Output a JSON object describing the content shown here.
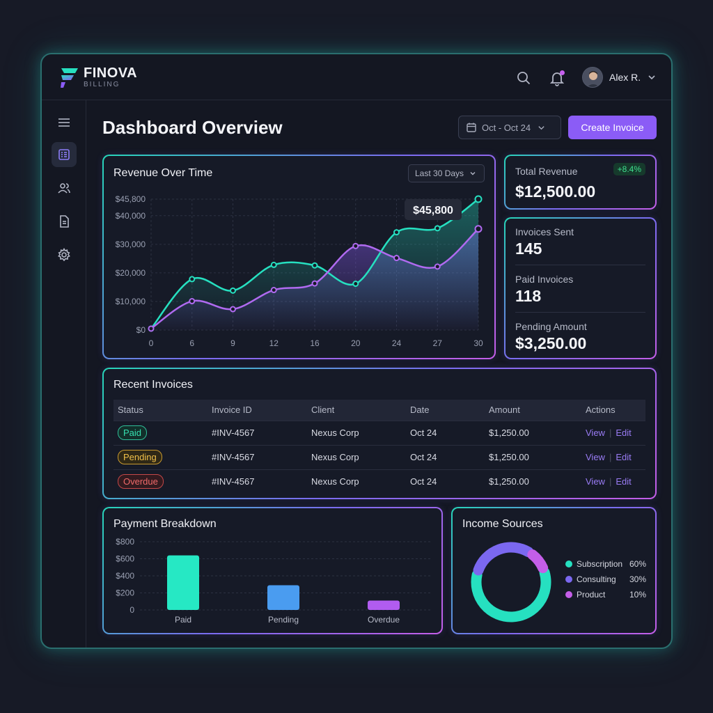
{
  "brand": {
    "name": "FINOVA",
    "sub": "BILLING",
    "colors": {
      "teal": "#26e0c0",
      "violet": "#8b5cf6",
      "magenta": "#c45ee8"
    }
  },
  "header": {
    "user_name": "Alex R.",
    "icons": [
      "search-icon",
      "bell-icon"
    ]
  },
  "sidebar": {
    "items": [
      "menu-icon",
      "dashboard-icon",
      "users-icon",
      "document-icon",
      "settings-icon"
    ],
    "active": "dashboard-icon"
  },
  "page": {
    "title": "Dashboard Overview",
    "date_range": "Oct - Oct 24",
    "create_label": "Create Invoice"
  },
  "revenue": {
    "title": "Revenue Over Time",
    "range_label": "Last 30 Days",
    "tooltip": "$45,800"
  },
  "kpis": {
    "total_revenue_label": "Total Revenue",
    "total_revenue_value": "$12,500.00",
    "total_revenue_change": "+8.4%",
    "invoices_sent_label": "Invoices Sent",
    "invoices_sent_value": "145",
    "paid_invoices_label": "Paid Invoices",
    "paid_invoices_value": "118",
    "pending_amount_label": "Pending Amount",
    "pending_amount_value": "$3,250.00"
  },
  "invoices": {
    "title": "Recent Invoices",
    "columns": [
      "Status",
      "Invoice ID",
      "Client",
      "Date",
      "Amount",
      "Actions"
    ],
    "rows": [
      {
        "status": "Paid",
        "id": "#INV-4567",
        "client": "Nexus Corp",
        "date": "Oct 24",
        "amount": "$1,250.00"
      },
      {
        "status": "Pending",
        "id": "#INV-4567",
        "client": "Nexus Corp",
        "date": "Oct 24",
        "amount": "$1,250.00"
      },
      {
        "status": "Overdue",
        "id": "#INV-4567",
        "client": "Nexus Corp",
        "date": "Oct 24",
        "amount": "$1,250.00"
      }
    ],
    "view_label": "View",
    "edit_label": "Edit"
  },
  "payment": {
    "title": "Payment Breakdown"
  },
  "income": {
    "title": "Income Sources",
    "items": [
      {
        "name": "Subscription",
        "pct": "60%",
        "color": "#26e0c0"
      },
      {
        "name": "Consulting",
        "pct": "30%",
        "color": "#7b68f0"
      },
      {
        "name": "Product",
        "pct": "10%",
        "color": "#c45ee8"
      }
    ]
  },
  "chart_data": [
    {
      "type": "line",
      "x": [
        0,
        6,
        9,
        12,
        16,
        20,
        24,
        27,
        30
      ],
      "xticks": [
        "0",
        "6",
        "9",
        "12",
        "16",
        "20",
        "24",
        "27",
        "30"
      ],
      "yticks": [
        "$0",
        "$10,000",
        "$20,000",
        "$30,000",
        "$40,000",
        "$45,800"
      ],
      "ylim": [
        0,
        45800
      ],
      "grid": true,
      "series": [
        {
          "values": [
            500,
            17800,
            13800,
            22800,
            22600,
            16200,
            34200,
            35600,
            45800
          ],
          "color": "#26e0c0"
        },
        {
          "values": [
            500,
            10100,
            7300,
            14000,
            16300,
            29400,
            25200,
            22200,
            35400
          ],
          "color": "#b06af0"
        }
      ]
    },
    {
      "type": "bar",
      "categories": [
        "Paid",
        "Pending",
        "Overdue"
      ],
      "values": [
        640,
        290,
        110
      ],
      "colors": [
        "#26e8c4",
        "#4a9cf0",
        "#b15cf0"
      ],
      "yticks": [
        "0",
        "$200",
        "$400",
        "$600",
        "$800"
      ],
      "ylim": [
        0,
        800
      ],
      "grid": true
    },
    {
      "type": "pie",
      "categories": [
        "Subscription",
        "Consulting",
        "Product"
      ],
      "values": [
        60,
        30,
        10
      ]
    }
  ]
}
